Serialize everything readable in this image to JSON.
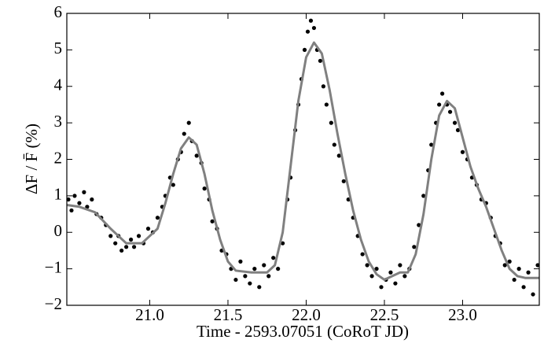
{
  "chart_data": {
    "type": "scatter",
    "xlabel": "Time - 2593.07051 (CoRoT JD)",
    "ylabel": "ΔF / F̄ (%)",
    "xlim": [
      20.47,
      23.49
    ],
    "ylim": [
      -2,
      6
    ],
    "xticks": [
      {
        "value": 21,
        "label": "21.0"
      },
      21.5,
      {
        "value": 22,
        "label": "22.0"
      },
      22.5,
      {
        "value": 23,
        "label": "23.0"
      }
    ],
    "yticks": [
      {
        "value": -2,
        "label": "−2"
      },
      {
        "value": -1,
        "label": "−1"
      },
      0,
      1,
      2,
      3,
      4,
      5,
      6
    ],
    "grid": false,
    "series": [
      {
        "type": "scatter",
        "color": "#000000",
        "x": [
          20.48,
          20.5,
          20.52,
          20.55,
          20.58,
          20.6,
          20.63,
          20.66,
          20.69,
          20.72,
          20.75,
          20.78,
          20.8,
          20.82,
          20.85,
          20.88,
          20.9,
          20.93,
          20.96,
          20.99,
          21.02,
          21.05,
          21.08,
          21.1,
          21.13,
          21.15,
          21.18,
          21.2,
          21.22,
          21.25,
          21.27,
          21.3,
          21.33,
          21.35,
          21.38,
          21.4,
          21.43,
          21.46,
          21.49,
          21.52,
          21.55,
          21.58,
          21.61,
          21.64,
          21.67,
          21.7,
          21.73,
          21.76,
          21.79,
          21.82,
          21.85,
          21.88,
          21.9,
          21.93,
          21.95,
          21.97,
          21.99,
          22.01,
          22.03,
          22.05,
          22.07,
          22.09,
          22.11,
          22.13,
          22.16,
          22.18,
          22.21,
          22.24,
          22.27,
          22.3,
          22.33,
          22.36,
          22.39,
          22.42,
          22.45,
          22.48,
          22.51,
          22.54,
          22.57,
          22.6,
          22.63,
          22.66,
          22.69,
          22.72,
          22.75,
          22.78,
          22.8,
          22.83,
          22.85,
          22.87,
          22.9,
          22.92,
          22.95,
          22.97,
          23.0,
          23.03,
          23.06,
          23.09,
          23.12,
          23.15,
          23.18,
          23.21,
          23.24,
          23.27,
          23.3,
          23.33,
          23.36,
          23.39,
          23.42,
          23.45,
          23.48
        ],
        "values": [
          0.9,
          0.6,
          1.0,
          0.8,
          1.1,
          0.7,
          0.9,
          0.5,
          0.4,
          0.2,
          -0.1,
          -0.3,
          -0.1,
          -0.5,
          -0.4,
          -0.2,
          -0.4,
          -0.1,
          -0.3,
          0.1,
          0.0,
          0.4,
          0.7,
          1.0,
          1.5,
          1.3,
          2.0,
          2.2,
          2.7,
          3.0,
          2.5,
          2.1,
          1.9,
          1.2,
          0.9,
          0.3,
          0.1,
          -0.5,
          -0.6,
          -1.0,
          -1.3,
          -0.8,
          -1.2,
          -1.4,
          -1.0,
          -1.5,
          -0.9,
          -1.2,
          -0.7,
          -1.0,
          -0.3,
          0.9,
          1.5,
          2.8,
          3.5,
          4.2,
          5.0,
          5.5,
          5.8,
          5.6,
          5.0,
          4.7,
          4.0,
          3.5,
          3.0,
          2.4,
          2.1,
          1.4,
          0.9,
          0.4,
          -0.1,
          -0.6,
          -0.9,
          -1.2,
          -1.0,
          -1.5,
          -1.3,
          -1.1,
          -1.4,
          -0.9,
          -1.2,
          -1.0,
          -0.4,
          0.2,
          1.0,
          1.7,
          2.4,
          3.0,
          3.5,
          3.8,
          3.5,
          3.3,
          3.0,
          2.8,
          2.2,
          2.0,
          1.5,
          1.3,
          0.9,
          0.8,
          0.4,
          -0.1,
          -0.3,
          -0.9,
          -0.8,
          -1.3,
          -1.0,
          -1.5,
          -1.1,
          -1.7,
          -0.9
        ]
      },
      {
        "type": "line",
        "color": "#808080",
        "x": [
          20.47,
          20.55,
          20.65,
          20.75,
          20.85,
          20.95,
          21.05,
          21.1,
          21.15,
          21.2,
          21.25,
          21.3,
          21.35,
          21.4,
          21.45,
          21.5,
          21.55,
          21.65,
          21.75,
          21.8,
          21.85,
          21.9,
          21.95,
          22.0,
          22.05,
          22.1,
          22.15,
          22.2,
          22.25,
          22.3,
          22.35,
          22.4,
          22.45,
          22.5,
          22.55,
          22.6,
          22.65,
          22.7,
          22.75,
          22.8,
          22.85,
          22.9,
          22.95,
          23.0,
          23.05,
          23.1,
          23.15,
          23.2,
          23.25,
          23.3,
          23.35,
          23.4,
          23.49
        ],
        "values": [
          0.75,
          0.7,
          0.55,
          0.1,
          -0.3,
          -0.3,
          0.1,
          0.8,
          1.6,
          2.3,
          2.6,
          2.4,
          1.6,
          0.6,
          -0.2,
          -0.8,
          -1.05,
          -1.1,
          -1.1,
          -0.9,
          0.0,
          1.8,
          3.6,
          4.8,
          5.2,
          4.9,
          3.9,
          2.7,
          1.6,
          0.6,
          -0.2,
          -0.8,
          -1.15,
          -1.3,
          -1.2,
          -1.1,
          -1.1,
          -0.6,
          0.5,
          2.0,
          3.2,
          3.6,
          3.4,
          2.6,
          1.8,
          1.2,
          0.7,
          0.1,
          -0.5,
          -1.0,
          -1.2,
          -1.25,
          -1.25
        ]
      }
    ]
  }
}
